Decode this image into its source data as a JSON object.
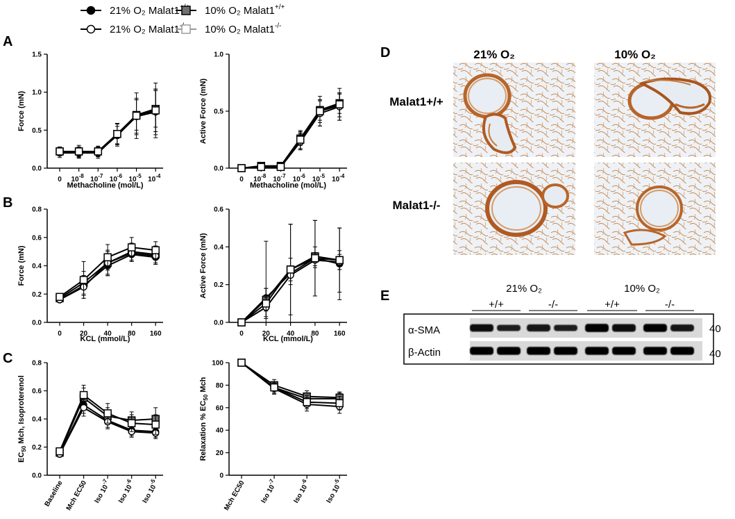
{
  "colors": {
    "axis": "#000000",
    "wt_normoxia": "#000000",
    "ko_normoxia": "#ffffff",
    "wt_hypoxia": "#707070",
    "ko_hypoxia": "#ffffff",
    "hypoxia_ko_stroke": "#9a9a9a",
    "tissue_bg": "#eef2f6",
    "stain": "#b8652a"
  },
  "legend": {
    "items": [
      {
        "label": "21% O₂ Malat1",
        "sup": "+/+",
        "marker": "circle",
        "fill": "#000000",
        "stroke": "#000000"
      },
      {
        "label": "10% O₂ Malat1",
        "sup": "+/+",
        "marker": "square",
        "fill": "#707070",
        "stroke": "#000000"
      },
      {
        "label": "21% O₂ Malat1",
        "sup": "-/-",
        "marker": "circle",
        "fill": "#ffffff",
        "stroke": "#000000"
      },
      {
        "label": "10% O₂ Malat1",
        "sup": "-/-",
        "marker": "square",
        "fill": "#ffffff",
        "stroke": "#9a9a9a"
      }
    ]
  },
  "panels": {
    "A": "A",
    "B": "B",
    "C": "C",
    "D": "D",
    "E": "E"
  },
  "chart_data": [
    {
      "id": "A1",
      "type": "line",
      "panel": "A",
      "xlabel": "Methacholine (mol/L)",
      "ylabel": "Force (mN)",
      "categories": [
        "0",
        "10^-8",
        "10^-7",
        "10^-6",
        "10^-5",
        "10^-4"
      ],
      "yticks": [
        "0.0",
        "0.5",
        "1.0",
        "1.5"
      ],
      "ylim": [
        0,
        1.5
      ],
      "series": [
        {
          "name": "21% O2 Malat1+/+",
          "values": [
            0.2,
            0.2,
            0.2,
            0.44,
            0.68,
            0.76
          ],
          "err": [
            0.06,
            0.07,
            0.07,
            0.15,
            0.24,
            0.28
          ]
        },
        {
          "name": "10% O2 Malat1+/+",
          "values": [
            0.22,
            0.22,
            0.22,
            0.45,
            0.7,
            0.78
          ],
          "err": [
            0.05,
            0.06,
            0.06,
            0.13,
            0.2,
            0.24
          ]
        },
        {
          "name": "21% O2 Malat1-/-",
          "values": [
            0.21,
            0.21,
            0.21,
            0.43,
            0.68,
            0.74
          ],
          "err": [
            0.05,
            0.06,
            0.06,
            0.12,
            0.22,
            0.3
          ]
        },
        {
          "name": "10% O2 Malat1-/-",
          "values": [
            0.22,
            0.22,
            0.22,
            0.45,
            0.69,
            0.76
          ],
          "err": [
            0.06,
            0.08,
            0.07,
            0.14,
            0.3,
            0.36
          ]
        }
      ]
    },
    {
      "id": "A2",
      "type": "line",
      "panel": "A",
      "xlabel": "Methacholine (mol/L)",
      "ylabel": "Active Force (mN)",
      "categories": [
        "0",
        "10^-8",
        "10^-7",
        "10^-6",
        "10^-5",
        "10^-4"
      ],
      "yticks": [
        "0.0",
        "0.5",
        "1.0"
      ],
      "ylim": [
        0,
        1.0
      ],
      "series": [
        {
          "name": "21% O2 Malat1+/+",
          "values": [
            0.0,
            0.01,
            0.01,
            0.24,
            0.5,
            0.55
          ],
          "err": [
            0.01,
            0.02,
            0.02,
            0.07,
            0.1,
            0.1
          ]
        },
        {
          "name": "10% O2 Malat1+/+",
          "values": [
            0.0,
            0.02,
            0.02,
            0.26,
            0.51,
            0.57
          ],
          "err": [
            0.01,
            0.02,
            0.02,
            0.06,
            0.09,
            0.09
          ]
        },
        {
          "name": "21% O2 Malat1-/-",
          "values": [
            0.0,
            0.01,
            0.01,
            0.23,
            0.48,
            0.54
          ],
          "err": [
            0.01,
            0.02,
            0.02,
            0.07,
            0.11,
            0.12
          ]
        },
        {
          "name": "10% O2 Malat1-/-",
          "values": [
            0.0,
            0.01,
            0.01,
            0.25,
            0.5,
            0.56
          ],
          "err": [
            0.01,
            0.02,
            0.02,
            0.08,
            0.13,
            0.14
          ]
        }
      ]
    },
    {
      "id": "B1",
      "type": "line",
      "panel": "B",
      "xlabel": "KCL (mmol/L)",
      "ylabel": "Force (mN)",
      "categories": [
        "0",
        "20",
        "40",
        "80",
        "160"
      ],
      "yticks": [
        "0.0",
        "0.2",
        "0.4",
        "0.6",
        "0.8"
      ],
      "ylim": [
        0,
        0.8
      ],
      "series": [
        {
          "name": "21% O2 Malat1+/+",
          "values": [
            0.16,
            0.26,
            0.4,
            0.48,
            0.46
          ],
          "err": [
            0.02,
            0.07,
            0.07,
            0.05,
            0.05
          ]
        },
        {
          "name": "10% O2 Malat1+/+",
          "values": [
            0.17,
            0.28,
            0.42,
            0.5,
            0.48
          ],
          "err": [
            0.02,
            0.08,
            0.08,
            0.06,
            0.06
          ]
        },
        {
          "name": "21% O2 Malat1-/-",
          "values": [
            0.16,
            0.25,
            0.42,
            0.49,
            0.47
          ],
          "err": [
            0.02,
            0.08,
            0.09,
            0.06,
            0.06
          ]
        },
        {
          "name": "10% O2 Malat1-/-",
          "values": [
            0.18,
            0.3,
            0.46,
            0.53,
            0.51
          ],
          "err": [
            0.02,
            0.13,
            0.09,
            0.07,
            0.06
          ]
        }
      ]
    },
    {
      "id": "B2",
      "type": "line",
      "panel": "B",
      "xlabel": "KCL (mmol/L)",
      "ylabel": "Active Force (mN)",
      "categories": [
        "0",
        "20",
        "40",
        "80",
        "160"
      ],
      "yticks": [
        "0.0",
        "0.2",
        "0.4",
        "0.6"
      ],
      "ylim": [
        0,
        0.6
      ],
      "series": [
        {
          "name": "21% O2 Malat1+/+",
          "values": [
            0.0,
            0.13,
            0.26,
            0.34,
            0.31
          ],
          "err": [
            0.0,
            0.3,
            0.26,
            0.2,
            0.19
          ]
        },
        {
          "name": "10% O2 Malat1+/+",
          "values": [
            0.0,
            0.12,
            0.28,
            0.35,
            0.33
          ],
          "err": [
            0.0,
            0.06,
            0.06,
            0.05,
            0.05
          ]
        },
        {
          "name": "21% O2 Malat1-/-",
          "values": [
            0.0,
            0.08,
            0.25,
            0.33,
            0.32
          ],
          "err": [
            0.0,
            0.05,
            0.05,
            0.04,
            0.04
          ]
        },
        {
          "name": "10% O2 Malat1-/-",
          "values": [
            0.0,
            0.1,
            0.28,
            0.34,
            0.33
          ],
          "err": [
            0.0,
            0.08,
            0.24,
            0.2,
            0.17
          ]
        }
      ]
    },
    {
      "id": "C1",
      "type": "line",
      "panel": "C",
      "xlabel": "",
      "ylabel": "EC50 Mch, Isoproterenol",
      "categories": [
        "Baseline",
        "Mch EC50",
        "Iso 10^-7",
        "Iso 10^-6",
        "Iso 10^-5"
      ],
      "yticks": [
        "0.0",
        "0.2",
        "0.4",
        "0.6",
        "0.8"
      ],
      "ylim": [
        0,
        0.8
      ],
      "series": [
        {
          "name": "21% O2 Malat1+/+",
          "values": [
            0.15,
            0.5,
            0.39,
            0.32,
            0.31
          ],
          "err": [
            0.02,
            0.06,
            0.05,
            0.04,
            0.04
          ]
        },
        {
          "name": "10% O2 Malat1+/+",
          "values": [
            0.16,
            0.55,
            0.42,
            0.39,
            0.4
          ],
          "err": [
            0.02,
            0.07,
            0.06,
            0.06,
            0.08
          ]
        },
        {
          "name": "21% O2 Malat1-/-",
          "values": [
            0.15,
            0.48,
            0.38,
            0.31,
            0.3
          ],
          "err": [
            0.02,
            0.06,
            0.05,
            0.04,
            0.04
          ]
        },
        {
          "name": "10% O2 Malat1-/-",
          "values": [
            0.17,
            0.57,
            0.44,
            0.37,
            0.36
          ],
          "err": [
            0.02,
            0.07,
            0.07,
            0.06,
            0.07
          ]
        }
      ]
    },
    {
      "id": "C2",
      "type": "line",
      "panel": "C",
      "xlabel": "",
      "ylabel": "Relaxation %  EC50 Mch",
      "categories": [
        "Mch EC50",
        "Iso 10^-7",
        "Iso 10^-6",
        "Iso 10^-5"
      ],
      "yticks": [
        "0",
        "20",
        "40",
        "60",
        "80",
        "100"
      ],
      "ylim": [
        0,
        100
      ],
      "series": [
        {
          "name": "21% O2 Malat1+/+",
          "values": [
            100,
            78,
            68,
            68
          ],
          "err": [
            1,
            5,
            5,
            5
          ]
        },
        {
          "name": "10% O2 Malat1+/+",
          "values": [
            100,
            80,
            70,
            69
          ],
          "err": [
            1,
            5,
            5,
            5
          ]
        },
        {
          "name": "21% O2 Malat1-/-",
          "values": [
            100,
            77,
            63,
            61
          ],
          "err": [
            1,
            5,
            6,
            6
          ]
        },
        {
          "name": "10% O2 Malat1-/-",
          "values": [
            100,
            78,
            65,
            64
          ],
          "err": [
            1,
            5,
            6,
            6
          ]
        }
      ]
    }
  ],
  "panelD": {
    "col1": "21% O₂",
    "col2": "10% O₂",
    "row1": "Malat1+/+",
    "row2": "Malat1-/-"
  },
  "panelE": {
    "group1": "21% O₂",
    "group2": "10% O₂",
    "genotypes": [
      "+/+",
      "-/-",
      "+/+",
      "-/-"
    ],
    "rows": [
      {
        "label": "α-SMA",
        "mw": "40",
        "intensities": [
          0.8,
          0.5,
          0.7,
          0.5,
          0.95,
          0.85,
          0.9,
          0.65
        ]
      },
      {
        "label": "β-Actin",
        "mw": "40",
        "intensities": [
          0.9,
          0.9,
          0.9,
          0.9,
          0.9,
          0.9,
          0.9,
          0.9
        ]
      }
    ]
  }
}
